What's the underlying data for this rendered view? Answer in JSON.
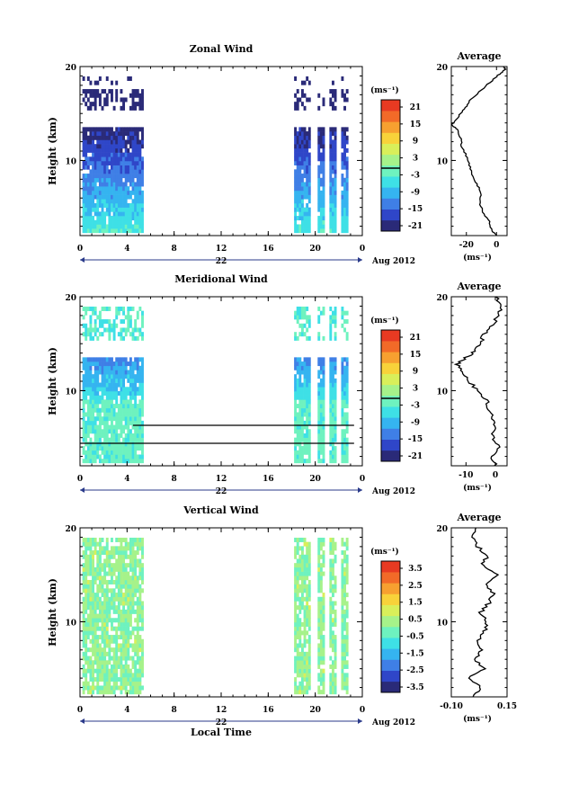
{
  "chart_data": [
    {
      "type": "heatmap",
      "title": "Zonal Wind",
      "ylabel": "Height (km)",
      "x_ticks": [
        "0",
        "4",
        "8",
        "12",
        "16",
        "20",
        "0"
      ],
      "y_ticks": [
        "20",
        "10"
      ],
      "date_label": "22",
      "month_label": "Aug 2012",
      "xlim": [
        0,
        24
      ],
      "ylim": [
        2,
        20
      ],
      "colorbar": {
        "unit": "(ms⁻¹)",
        "ticks": [
          "21",
          "15",
          "9",
          "3",
          "-3",
          "-9",
          "-15",
          "-21"
        ],
        "range": [
          -24,
          24
        ]
      },
      "data_blocks_hours": [
        [
          0.2,
          5.4
        ],
        [
          18.2,
          22.6
        ]
      ],
      "average_panel": {
        "title": "Average",
        "xlabel": "(ms⁻¹)",
        "x_ticks": [
          "-20",
          "0"
        ],
        "xlim": [
          -30,
          7
        ],
        "y_ticks": [
          "20",
          "10"
        ],
        "profile": [
          {
            "h": 2.0,
            "v": 0
          },
          {
            "h": 2.5,
            "v": -3
          },
          {
            "h": 3.5,
            "v": -5
          },
          {
            "h": 4.5,
            "v": -9
          },
          {
            "h": 5.5,
            "v": -11
          },
          {
            "h": 6.5,
            "v": -10
          },
          {
            "h": 7.5,
            "v": -13
          },
          {
            "h": 8.5,
            "v": -16
          },
          {
            "h": 9.5,
            "v": -18
          },
          {
            "h": 10.5,
            "v": -20
          },
          {
            "h": 11.5,
            "v": -23
          },
          {
            "h": 12.5,
            "v": -24
          },
          {
            "h": 13.3,
            "v": -26
          },
          {
            "h": 13.8,
            "v": -30
          },
          {
            "h": 14.3,
            "v": -27
          },
          {
            "h": 15.0,
            "v": -24
          },
          {
            "h": 15.8,
            "v": -20
          },
          {
            "h": 16.5,
            "v": -17
          },
          {
            "h": 17.5,
            "v": -10
          },
          {
            "h": 18.5,
            "v": -3
          },
          {
            "h": 19.2,
            "v": 2
          },
          {
            "h": 19.7,
            "v": 6
          },
          {
            "h": 20.0,
            "v": 5
          }
        ]
      }
    },
    {
      "type": "heatmap",
      "title": "Meridional Wind",
      "ylabel": "Height (km)",
      "x_ticks": [
        "0",
        "4",
        "8",
        "12",
        "16",
        "20",
        "0"
      ],
      "y_ticks": [
        "20",
        "10"
      ],
      "date_label": "22",
      "month_label": "Aug 2012",
      "xlim": [
        0,
        24
      ],
      "ylim": [
        2,
        20
      ],
      "colorbar": {
        "unit": "(ms⁻¹)",
        "ticks": [
          "21",
          "15",
          "9",
          "3",
          "-3",
          "-9",
          "-15",
          "-21"
        ],
        "range": [
          -24,
          24
        ]
      },
      "data_blocks_hours": [
        [
          0.2,
          5.4
        ],
        [
          18.2,
          22.6
        ]
      ],
      "average_panel": {
        "title": "Average",
        "xlabel": "(ms⁻¹)",
        "x_ticks": [
          "-10",
          "0"
        ],
        "xlim": [
          -15,
          4
        ],
        "y_ticks": [
          "20",
          "10"
        ],
        "profile": [
          {
            "h": 2.0,
            "v": 0
          },
          {
            "h": 3.0,
            "v": -1
          },
          {
            "h": 4.0,
            "v": 1
          },
          {
            "h": 5.0,
            "v": -1
          },
          {
            "h": 6.0,
            "v": 0
          },
          {
            "h": 7.0,
            "v": -1
          },
          {
            "h": 8.0,
            "v": -2
          },
          {
            "h": 9.0,
            "v": -3
          },
          {
            "h": 10.0,
            "v": -6
          },
          {
            "h": 11.0,
            "v": -9
          },
          {
            "h": 12.0,
            "v": -11
          },
          {
            "h": 12.8,
            "v": -13
          },
          {
            "h": 13.5,
            "v": -10
          },
          {
            "h": 14.2,
            "v": -7
          },
          {
            "h": 15.0,
            "v": -5
          },
          {
            "h": 16.0,
            "v": -4
          },
          {
            "h": 17.0,
            "v": -1
          },
          {
            "h": 18.0,
            "v": 1
          },
          {
            "h": 19.0,
            "v": 2
          },
          {
            "h": 20.0,
            "v": 0
          }
        ]
      }
    },
    {
      "type": "heatmap",
      "title": "Vertical Wind",
      "ylabel": "Height (km)",
      "xlabel": "Local Time",
      "x_ticks": [
        "0",
        "4",
        "8",
        "12",
        "16",
        "20",
        "0"
      ],
      "y_ticks": [
        "20",
        "10"
      ],
      "date_label": "22",
      "month_label": "Aug 2012",
      "xlim": [
        0,
        24
      ],
      "ylim": [
        2,
        20
      ],
      "colorbar": {
        "unit": "(ms⁻¹)",
        "ticks": [
          "3.5",
          "2.5",
          "1.5",
          "0.5",
          "-0.5",
          "-1.5",
          "-2.5",
          "-3.5"
        ],
        "range": [
          -4,
          4
        ]
      },
      "data_blocks_hours": [
        [
          0.2,
          5.4
        ],
        [
          18.2,
          22.6
        ]
      ],
      "average_panel": {
        "title": "Average",
        "xlabel": "(ms⁻¹)",
        "x_ticks": [
          "-0.10",
          "0.15"
        ],
        "xlim": [
          -0.1,
          0.15
        ],
        "y_ticks": [
          "20",
          "10"
        ],
        "profile": [
          {
            "h": 2.0,
            "v": 0.0
          },
          {
            "h": 3.0,
            "v": 0.03
          },
          {
            "h": 4.0,
            "v": -0.02
          },
          {
            "h": 5.0,
            "v": 0.05
          },
          {
            "h": 6.0,
            "v": 0.0
          },
          {
            "h": 7.0,
            "v": 0.04
          },
          {
            "h": 8.0,
            "v": 0.02
          },
          {
            "h": 9.0,
            "v": 0.05
          },
          {
            "h": 10.0,
            "v": 0.06
          },
          {
            "h": 11.0,
            "v": 0.03
          },
          {
            "h": 12.0,
            "v": 0.07
          },
          {
            "h": 13.0,
            "v": 0.09
          },
          {
            "h": 14.0,
            "v": 0.05
          },
          {
            "h": 15.0,
            "v": 0.1
          },
          {
            "h": 16.0,
            "v": 0.04
          },
          {
            "h": 17.0,
            "v": 0.06
          },
          {
            "h": 18.0,
            "v": 0.02
          },
          {
            "h": 19.0,
            "v": 0.0
          },
          {
            "h": 20.0,
            "v": 0.01
          }
        ]
      }
    }
  ]
}
